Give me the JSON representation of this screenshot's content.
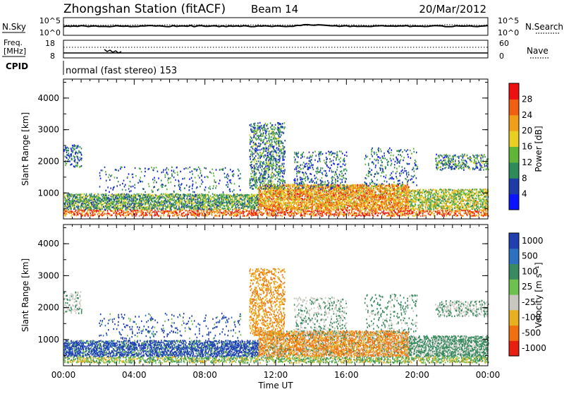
{
  "header": {
    "station": "Zhongshan Station (fitACF)",
    "beam": "Beam 14",
    "date": "20/Mar/2012"
  },
  "panels": {
    "nsky": {
      "left_label": "N.Sky",
      "left_ticks": [
        "10^5",
        "10^0"
      ],
      "right_ticks": [
        "10^5",
        "10^0"
      ],
      "right_label": "N.Search"
    },
    "freq": {
      "left_label_top": "Freq.",
      "left_label_bottom": "[MHz]",
      "left_ticks": [
        "18",
        "8"
      ],
      "right_ticks": [
        "60",
        "0"
      ],
      "right_label": "Nave"
    },
    "cpid": {
      "label": "CPID",
      "text": "normal (fast stereo) 153"
    }
  },
  "chart_data": [
    {
      "type": "heatmap",
      "title": "",
      "ylabel": "Slant Range [km]",
      "xlabel": "",
      "ylim": [
        180,
        4600
      ],
      "yticks": [
        "1000",
        "2000",
        "3000",
        "4000"
      ],
      "colorbar": {
        "label": "Power [dB]",
        "range": [
          0,
          32
        ],
        "ticks": [
          "4",
          "8",
          "12",
          "16",
          "20",
          "24",
          "28"
        ],
        "colors": [
          "#0a14ff",
          "#1e3ca8",
          "#2e8c5a",
          "#62b438",
          "#e8d020",
          "#f0a018",
          "#f06010",
          "#ee1010"
        ]
      }
    },
    {
      "type": "heatmap",
      "title": "",
      "ylabel": "Slant Range [km]",
      "xlabel": "Time UT",
      "ylim": [
        180,
        4600
      ],
      "yticks": [
        "1000",
        "2000",
        "3000",
        "4000"
      ],
      "xticks": [
        "00:00",
        "04:00",
        "08:00",
        "12:00",
        "16:00",
        "20:00",
        "00:00"
      ],
      "colorbar": {
        "label": "Velocity [m s⁻¹]",
        "ticks": [
          "1000",
          "500",
          "100",
          "25",
          "-25",
          "-100",
          "-500",
          "-1000"
        ],
        "colors": [
          "#2040b0",
          "#2e70c0",
          "#3a8a60",
          "#70c050",
          "#c8c8c0",
          "#e8b020",
          "#f07010",
          "#e82010"
        ]
      }
    }
  ]
}
